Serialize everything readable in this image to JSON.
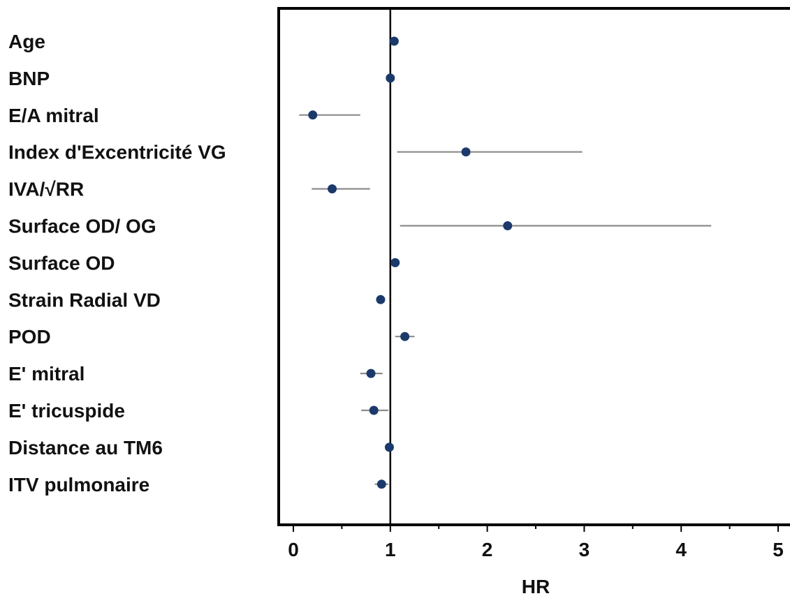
{
  "chart_data": {
    "type": "forest",
    "xlabel": "HR",
    "xlim": [
      0,
      5
    ],
    "xticks": [
      0,
      1,
      2,
      3,
      4,
      5
    ],
    "xtick_labels": [
      "0",
      "1",
      "2",
      "3",
      "4",
      "5"
    ],
    "reference_line": 1,
    "rows": [
      {
        "label": "Age",
        "hr": 1.04,
        "ci_low": 1.02,
        "ci_high": 1.06
      },
      {
        "label": "BNP",
        "hr": 1.0,
        "ci_low": 0.99,
        "ci_high": 1.01
      },
      {
        "label": "E/A mitral",
        "hr": 0.2,
        "ci_low": 0.06,
        "ci_high": 0.69
      },
      {
        "label": "Index d'Excentricité VG",
        "hr": 1.78,
        "ci_low": 1.07,
        "ci_high": 2.98
      },
      {
        "label": "IVA/√RR",
        "hr": 0.4,
        "ci_low": 0.19,
        "ci_high": 0.79
      },
      {
        "label": "Surface OD/ OG",
        "hr": 2.21,
        "ci_low": 1.1,
        "ci_high": 4.31
      },
      {
        "label": "Surface OD",
        "hr": 1.05,
        "ci_low": 1.02,
        "ci_high": 1.08
      },
      {
        "label": "Strain Radial VD",
        "hr": 0.9,
        "ci_low": 0.87,
        "ci_high": 0.94
      },
      {
        "label": "POD",
        "hr": 1.15,
        "ci_low": 1.05,
        "ci_high": 1.25
      },
      {
        "label": "E' mitral",
        "hr": 0.8,
        "ci_low": 0.69,
        "ci_high": 0.92
      },
      {
        "label": "E' tricuspide",
        "hr": 0.83,
        "ci_low": 0.7,
        "ci_high": 0.98
      },
      {
        "label": "Distance au TM6",
        "hr": 0.99,
        "ci_low": 0.98,
        "ci_high": 1.0
      },
      {
        "label": "ITV pulmonaire",
        "hr": 0.91,
        "ci_low": 0.84,
        "ci_high": 0.98
      }
    ],
    "colors": {
      "point": "#1b3a6b",
      "ci_line": "#8c8c8c",
      "reference": "#000000",
      "frame": "#000000"
    }
  }
}
